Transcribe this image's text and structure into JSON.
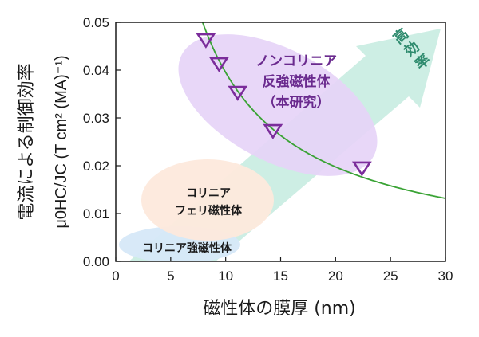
{
  "chart_data": {
    "type": "scatter",
    "xlabel": "磁性体の膜厚 (nm)",
    "ylabel_jp": "電流による制御効率",
    "ylabel_symbol": "μ0HC/JC (T cm² (MA)⁻¹)",
    "xlim": [
      0,
      30
    ],
    "ylim": [
      0,
      0.05
    ],
    "xticks": [
      "0",
      "5",
      "10",
      "15",
      "20",
      "25",
      "30"
    ],
    "yticks": [
      "0.00",
      "0.01",
      "0.02",
      "0.03",
      "0.04",
      "0.05"
    ],
    "series": [
      {
        "marker": "triangle-down",
        "color": "#7b2d9b",
        "x": [
          8.2,
          9.4,
          11.1,
          14.3,
          22.4
        ],
        "y": [
          0.0465,
          0.0415,
          0.0355,
          0.0275,
          0.0197
        ]
      }
    ],
    "fit_curve": {
      "color": "#3aa335",
      "form": "y = a / x",
      "a": 0.395,
      "x_range": [
        7.9,
        30
      ]
    },
    "regions": [
      {
        "label": "コリニア強磁性体",
        "color": "#d6e8f8"
      },
      {
        "label": "コリニア\nフェリ磁性体",
        "color": "#fde9dc"
      },
      {
        "label": "ノンコリニア\n反強磁性体\n（本研究）",
        "color": "#e6d4f7"
      }
    ],
    "arrow": {
      "label": "高効率",
      "color": "#cdeee4"
    },
    "grid": false,
    "legend": "none"
  }
}
